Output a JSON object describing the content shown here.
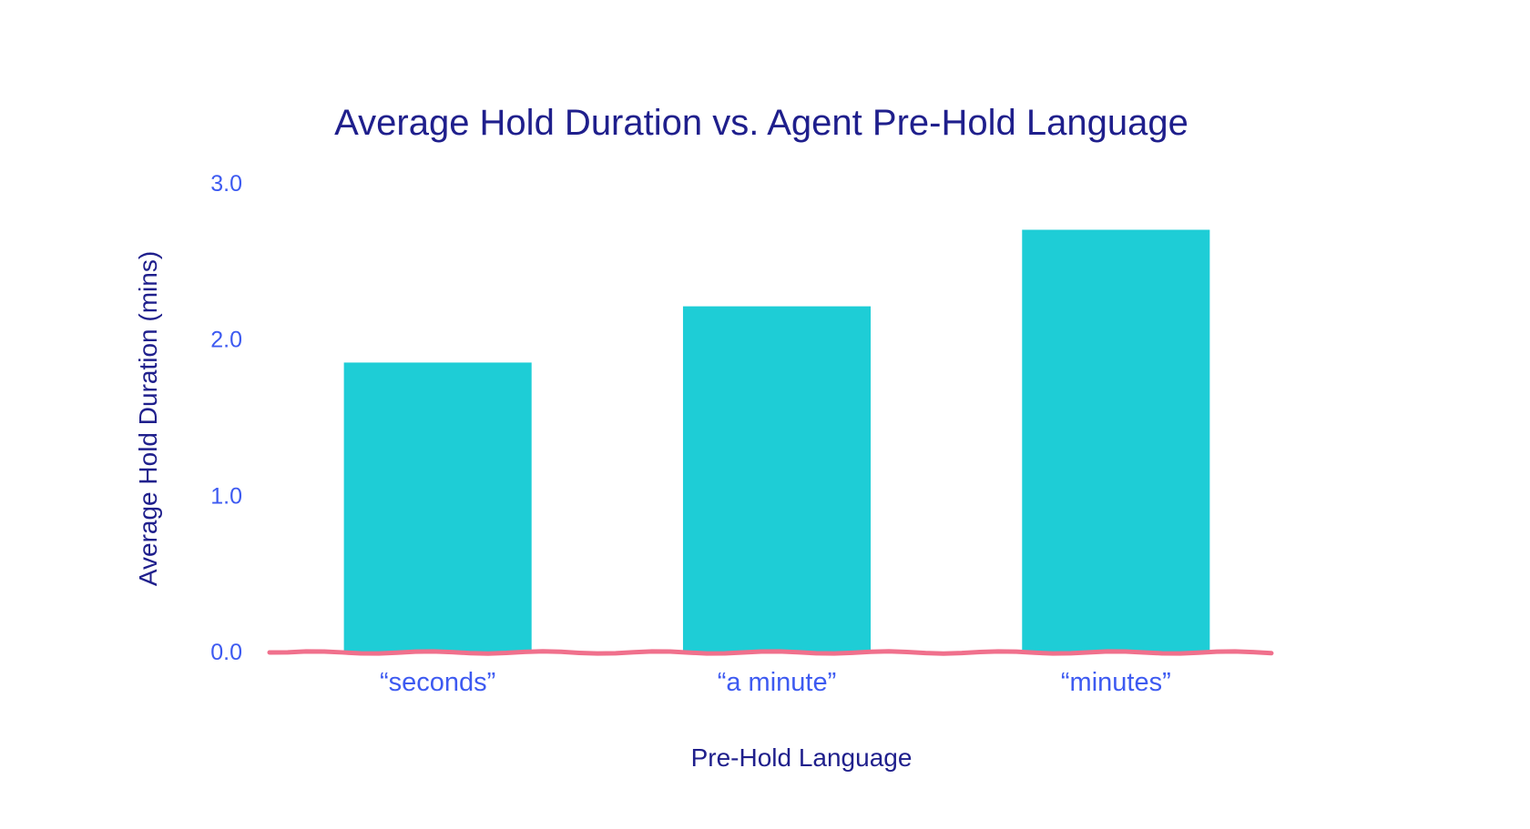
{
  "colors": {
    "bar": "#1ecdd6",
    "baseline": "#f0708c",
    "title": "#1f1f8c",
    "tick": "#3d5af1"
  },
  "chart_data": {
    "type": "bar",
    "title": "Average Hold Duration vs. Agent Pre-Hold Language",
    "xlabel": "Pre-Hold Language",
    "ylabel": "Average Hold Duration (mins)",
    "categories": [
      "“seconds”",
      "“a minute”",
      "“minutes”"
    ],
    "values": [
      1.85,
      2.21,
      2.7
    ],
    "ylim": [
      0,
      3.0
    ],
    "yticks": [
      "0.0",
      "1.0",
      "2.0",
      "3.0"
    ],
    "grid": false,
    "legend": "none"
  }
}
